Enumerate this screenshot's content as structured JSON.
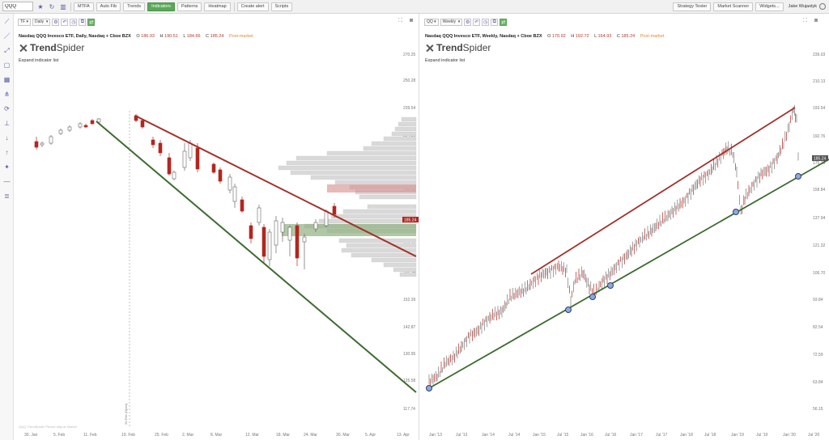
{
  "topbar": {
    "symbol": "QQQ",
    "buttons": [
      "MTFA",
      "Auto Fib",
      "Trends",
      "Indicators",
      "Patterns",
      "Heatmap",
      "Create alert",
      "Scripts"
    ],
    "active_button": "Indicators",
    "right_buttons": [
      "Strategy Tester",
      "Market Scanner",
      "Widgets..."
    ],
    "user": "Jake Wujastyk"
  },
  "left": {
    "interval": "Daily",
    "symbol_short": "TF",
    "title": "Nasdaq QQQ Invesco ETF, Daily, Nasdaq + Cboe BZX",
    "o_label": "O",
    "o": "186.93",
    "h_label": "H",
    "h": "190.51",
    "l_label": "L",
    "l": "184.66",
    "c_label": "C",
    "c": "185.24",
    "market": "Post-market",
    "brand_a": "Trend",
    "brand_b": "Spider",
    "expand": "Expand indicator list",
    "price_tag": "185.24",
    "vline_label": "20-Feb (Open)",
    "watermark": "QQQ TrendSpider Please stay at Market",
    "y_ticks": [
      "270.25",
      "250.28",
      "239.54",
      "224.28",
      "210.77",
      "196.86",
      "173.12",
      "162.54",
      "152.39",
      "142.87",
      "130.95",
      "125.58",
      "117.74"
    ],
    "x_ticks": [
      "30. Jan",
      "5. Feb",
      "11. Feb",
      "19. Feb",
      "25. Feb",
      "2. Mar",
      "8. Mar",
      "12. Mar",
      "18. Mar",
      "24. Mar",
      "30. Mar",
      "5. Apr",
      "13. Apr"
    ]
  },
  "right": {
    "interval": "Weekly",
    "symbol_short": "QQ",
    "title": "Nasdaq QQQ Invesco ETF, Weekly, Nasdaq + Cboe BZX",
    "o_label": "O",
    "o": "170.92",
    "h_label": "H",
    "h": "192.72",
    "l_label": "L",
    "l": "164.93",
    "c_label": "C",
    "c": "185.24",
    "market": "Post-market",
    "brand_a": "Trend",
    "brand_b": "Spider",
    "expand": "Expand indicator list",
    "price_tag": "185.24",
    "y_ticks": [
      "239.03",
      "210.13",
      "193.54",
      "192.76",
      "175.19",
      "158.84",
      "137.94",
      "121.32",
      "106.70",
      "93.84",
      "82.54",
      "72.59",
      "63.84",
      "56.15"
    ],
    "x_ticks": [
      "Jan '13",
      "Jul '13",
      "Jan '14",
      "Jul '14",
      "Jan '15",
      "Jul '15",
      "Jan '16",
      "Jul '16",
      "Jan '17",
      "Jul '17",
      "Jan '18",
      "Jul '18",
      "Jan '19",
      "Jul '19",
      "Jan '20",
      "Jul '20"
    ]
  },
  "colors": {
    "resistance": "#a3302a",
    "support": "#3d6b2f",
    "candle_up": "#555555",
    "candle_down": "#b3261e",
    "accent": "#5a5fa8"
  }
}
